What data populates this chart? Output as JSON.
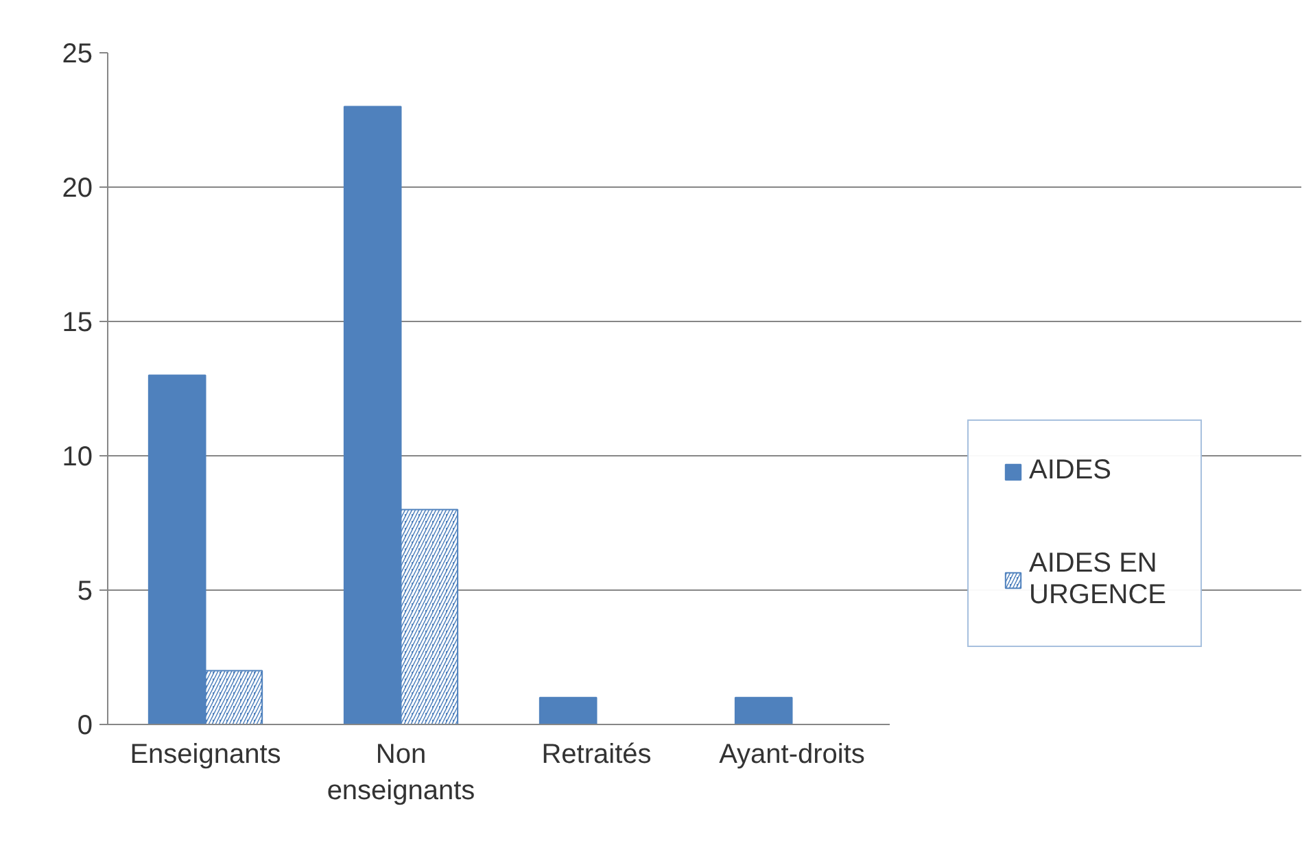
{
  "chart_data": {
    "type": "bar",
    "categories": [
      "Enseignants",
      "Non enseignants",
      "Retraités",
      "Ayant-droits"
    ],
    "series": [
      {
        "name": "AIDES",
        "color": "#4f81bd",
        "values": [
          13,
          23,
          1,
          1
        ]
      },
      {
        "name": "AIDES EN URGENCE",
        "color": "#4f81bd",
        "values": [
          2,
          8,
          null,
          null
        ]
      }
    ],
    "ylim": [
      0,
      25
    ],
    "yticks": [
      0,
      5,
      10,
      15,
      20,
      25
    ],
    "grid": "y",
    "legend": "right"
  }
}
